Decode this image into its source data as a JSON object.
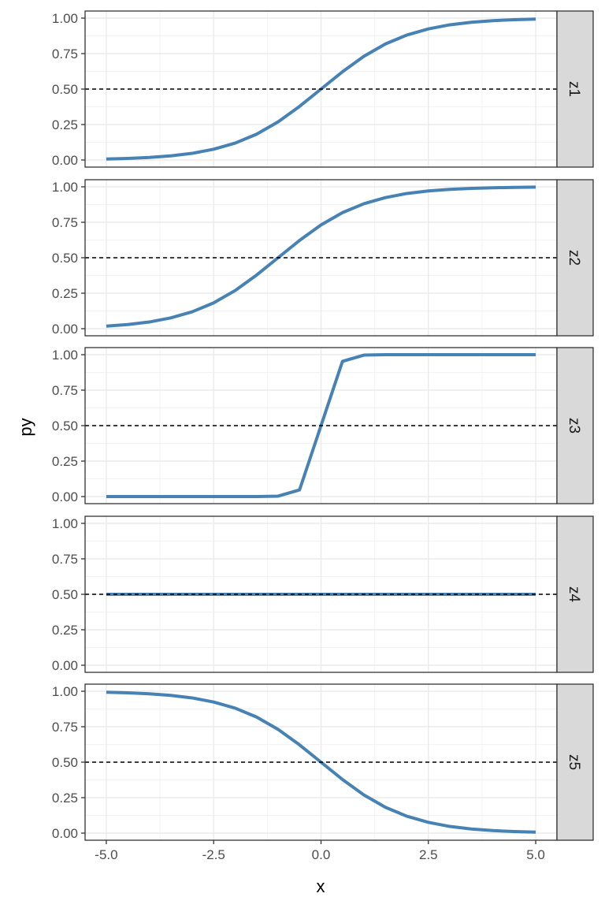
{
  "chart_data": {
    "type": "line",
    "facet_by": "z",
    "xlabel": "x",
    "ylabel": "py",
    "xlim": [
      -5,
      5
    ],
    "ylim": [
      0,
      1
    ],
    "x_ticks": [
      "-5.0",
      "-2.5",
      "0.0",
      "2.5",
      "5.0"
    ],
    "y_ticks": [
      "0.00",
      "0.25",
      "0.50",
      "0.75",
      "1.00"
    ],
    "reference_line": {
      "y": 0.5,
      "style": "dashed",
      "color": "#000000"
    },
    "line_color": "#4682b4",
    "grid": true,
    "x": [
      -5,
      -4.5,
      -4,
      -3.5,
      -3,
      -2.5,
      -2,
      -1.5,
      -1,
      -0.5,
      0,
      0.5,
      1,
      1.5,
      2,
      2.5,
      3,
      3.5,
      4,
      4.5,
      5
    ],
    "panels": [
      {
        "label": "z1",
        "values": [
          0.007,
          0.011,
          0.018,
          0.029,
          0.047,
          0.076,
          0.119,
          0.182,
          0.269,
          0.378,
          0.5,
          0.622,
          0.731,
          0.818,
          0.881,
          0.924,
          0.953,
          0.971,
          0.982,
          0.989,
          0.993
        ]
      },
      {
        "label": "z2",
        "values": [
          0.018,
          0.029,
          0.047,
          0.076,
          0.119,
          0.182,
          0.269,
          0.378,
          0.5,
          0.622,
          0.731,
          0.818,
          0.881,
          0.924,
          0.953,
          0.971,
          0.982,
          0.989,
          0.993,
          0.996,
          0.998
        ]
      },
      {
        "label": "z3",
        "values": [
          0.0,
          0.0,
          0.0,
          0.0,
          0.0,
          0.0,
          0.0,
          0.0,
          0.003,
          0.047,
          0.5,
          0.953,
          0.997,
          1.0,
          1.0,
          1.0,
          1.0,
          1.0,
          1.0,
          1.0,
          1.0
        ]
      },
      {
        "label": "z4",
        "values": [
          0.5,
          0.5,
          0.5,
          0.5,
          0.5,
          0.5,
          0.5,
          0.5,
          0.5,
          0.5,
          0.5,
          0.5,
          0.5,
          0.5,
          0.5,
          0.5,
          0.5,
          0.5,
          0.5,
          0.5,
          0.5
        ]
      },
      {
        "label": "z5",
        "values": [
          0.993,
          0.989,
          0.982,
          0.971,
          0.953,
          0.924,
          0.881,
          0.818,
          0.731,
          0.622,
          0.5,
          0.378,
          0.269,
          0.182,
          0.119,
          0.076,
          0.047,
          0.029,
          0.018,
          0.011,
          0.007
        ]
      }
    ]
  }
}
